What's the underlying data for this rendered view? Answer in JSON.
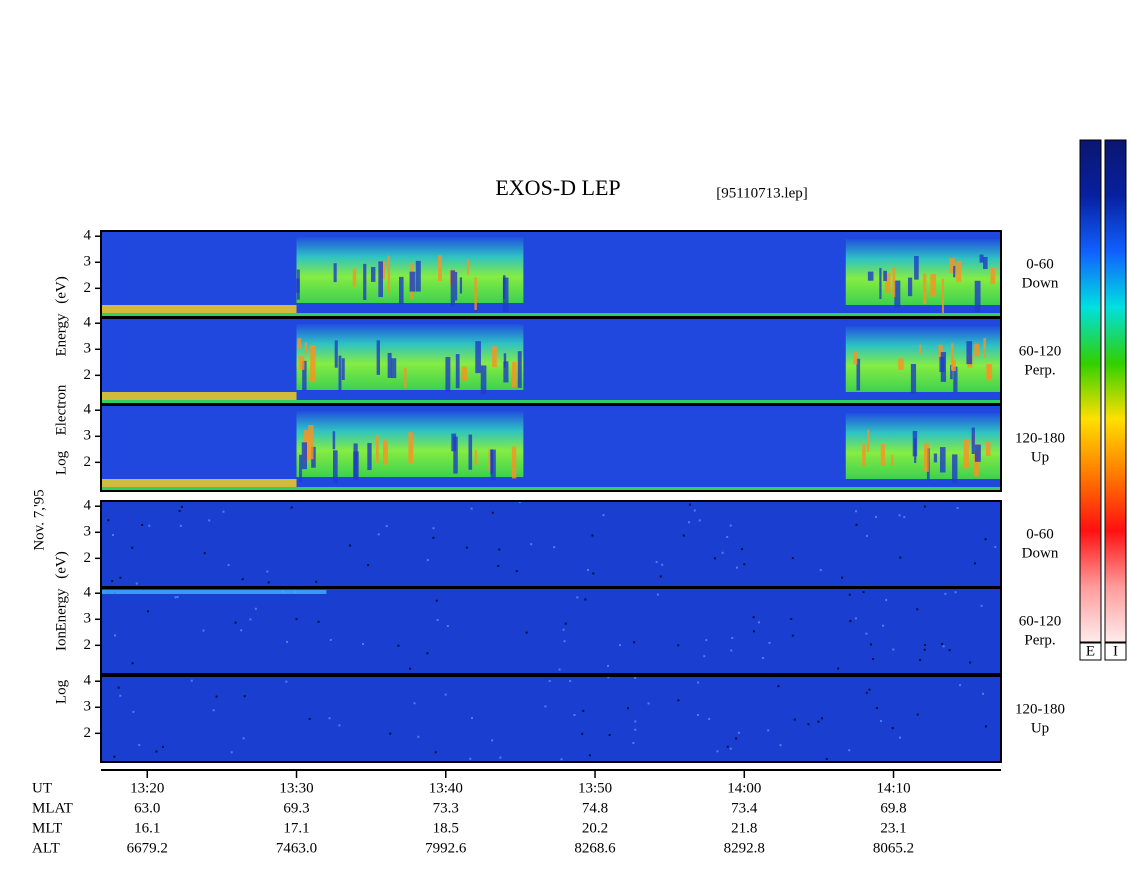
{
  "chart_data": {
    "type": "spectrogram",
    "title": "EXOS-D LEP",
    "subtitle": "[95110713.lep]",
    "date": "Nov. 7,'95",
    "xlabel": "UT",
    "xlim": [
      796.9,
      857.2
    ],
    "xticks": [
      {
        "value": 800,
        "label": "13:20"
      },
      {
        "value": 810,
        "label": "13:30"
      },
      {
        "value": 820,
        "label": "13:40"
      },
      {
        "value": 830,
        "label": "13:50"
      },
      {
        "value": 840,
        "label": "14:00"
      },
      {
        "value": 850,
        "label": "14:10"
      }
    ],
    "ephemeris": [
      {
        "name": "MLAT",
        "values": [
          "63.0",
          "69.3",
          "73.3",
          "74.8",
          "73.4",
          "69.8"
        ]
      },
      {
        "name": "MLT",
        "values": [
          "16.1",
          "17.1",
          "18.5",
          "20.2",
          "21.8",
          "23.1"
        ]
      },
      {
        "name": "ALT",
        "values": [
          "6679.2",
          "7463.0",
          "7992.6",
          "8268.6",
          "8292.8",
          "8065.2"
        ]
      }
    ],
    "ylim": [
      0.9,
      4.2
    ],
    "yticks": [
      2,
      3,
      4
    ],
    "groups": [
      {
        "words": [
          "Log",
          "Electron",
          "Energy",
          "(eV)"
        ],
        "panels": [
          {
            "labels": [
              "0-60",
              "Down"
            ]
          },
          {
            "labels": [
              "60-120",
              "Perp."
            ]
          },
          {
            "labels": [
              "120-180",
              "Up"
            ]
          }
        ]
      },
      {
        "words": [
          "Log",
          "Ion",
          "Energy",
          "(eV)"
        ],
        "panels": [
          {
            "labels": [
              "0-60",
              "Down"
            ]
          },
          {
            "labels": [
              "60-120",
              "Perp."
            ]
          },
          {
            "labels": [
              "120-180",
              "Up"
            ]
          }
        ]
      }
    ],
    "colorbars": [
      {
        "label": "E"
      },
      {
        "label": "I"
      }
    ],
    "colormap": [
      "#ffecec",
      "#ff9a9a",
      "#ff1010",
      "#ff7a00",
      "#ffe000",
      "#30d000",
      "#00e0e0",
      "#1060ff",
      "#0820a0",
      "#0a1670"
    ]
  }
}
